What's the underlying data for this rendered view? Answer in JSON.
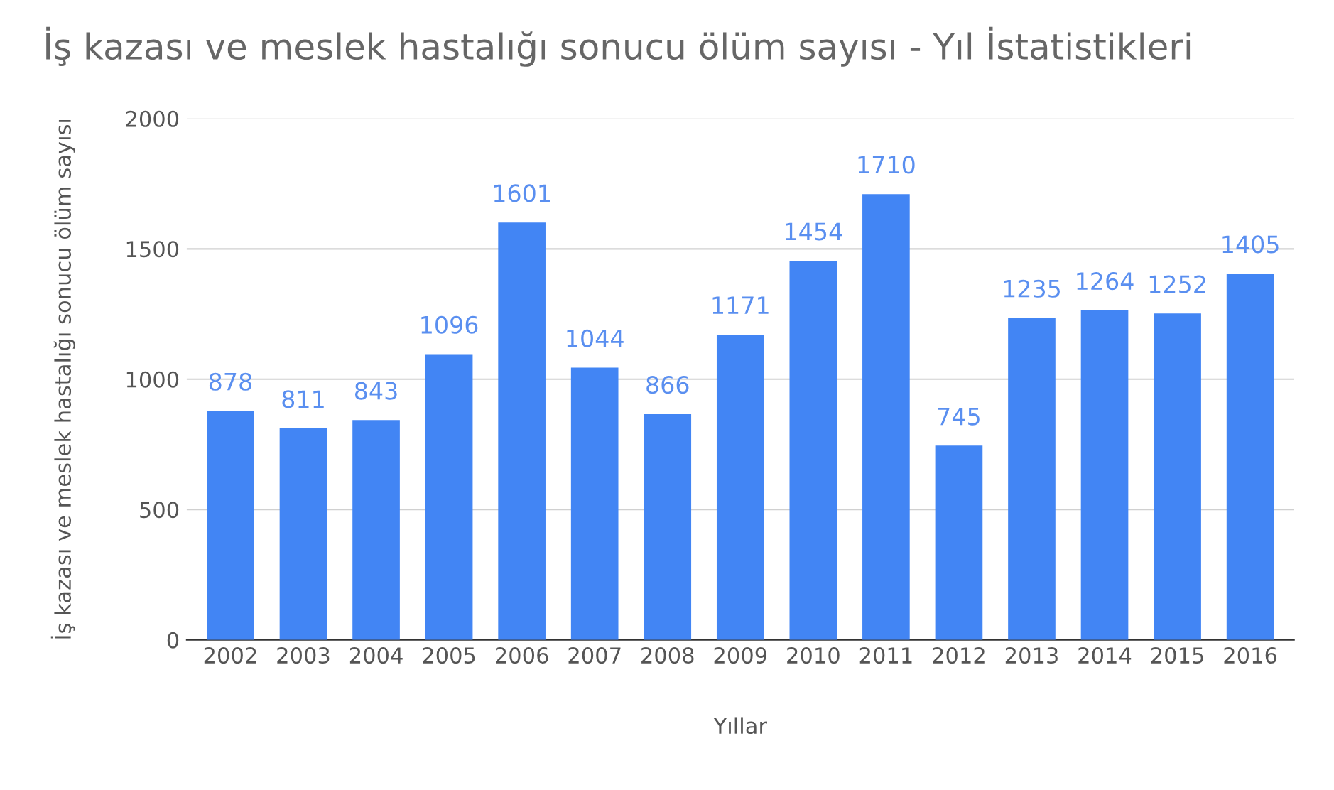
{
  "chart_data": {
    "type": "bar",
    "title": "İş kazası ve meslek hastalığı sonucu ölüm sayısı - Yıl İstatistikleri",
    "xlabel": "Yıllar",
    "ylabel": "İş kazası ve meslek hastalığı sonucu ölüm sayısı",
    "categories": [
      "2002",
      "2003",
      "2004",
      "2005",
      "2006",
      "2007",
      "2008",
      "2009",
      "2010",
      "2011",
      "2012",
      "2013",
      "2014",
      "2015",
      "2016"
    ],
    "values": [
      878,
      811,
      843,
      1096,
      1601,
      1044,
      866,
      1171,
      1454,
      1710,
      745,
      1235,
      1264,
      1252,
      1405
    ],
    "color": "#4285f4",
    "ylim": [
      0,
      2000
    ],
    "yticks": [
      0,
      500,
      1000,
      1500,
      2000
    ],
    "grid": "y",
    "data_labels": true
  }
}
